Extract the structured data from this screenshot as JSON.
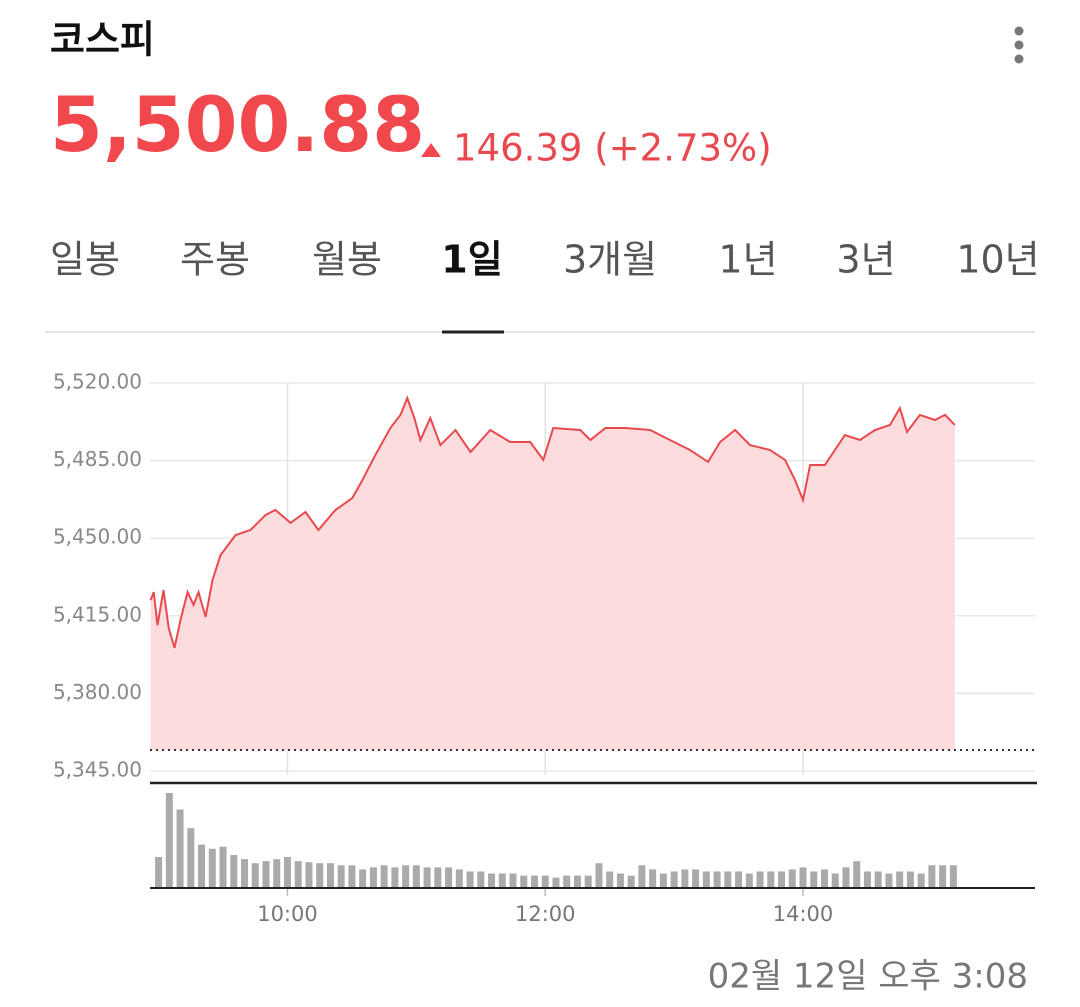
{
  "header": {
    "title": "코스피",
    "price": "5,500.88",
    "change": "146.39 (+2.73%)"
  },
  "tabs": [
    "일봉",
    "주봉",
    "월봉",
    "1일",
    "3개월",
    "1년",
    "3년",
    "10년"
  ],
  "selected_tab": 3,
  "timestamp": "02월 12일 오후 3:08",
  "chart_data": {
    "type": "area",
    "series": [
      {
        "color": "#e8494f",
        "fill": "#fcdcdc",
        "x": [
          536.3,
          537.7,
          539.5,
          542.3,
          544.7,
          547.4,
          550.2,
          553.5,
          556.3,
          558.6,
          561.9,
          565.1,
          568.8,
          575.8,
          582.8,
          589.8,
          594.4,
          601.4,
          608.4,
          614.4,
          622.3,
          630.2,
          634.9,
          640.9,
          647.9,
          652.6,
          655.8,
          659.1,
          661.9,
          666.5,
          671.2,
          678.2,
          685.2,
          694.4,
          703.7,
          713.0,
          719.1,
          723.7,
          736.3,
          741.0,
          748.0,
          757.3,
          768.8,
          778.1,
          787.4,
          795.8,
          801.4,
          808.4,
          815.3,
          824.7,
          831.6,
          836.3,
          840.0,
          843.3,
          850.2,
          859.5,
          866.5,
          873.5,
          880.5,
          885.1,
          888.4,
          894.4,
          901.4,
          906.1,
          910.7
        ],
        "values": [
          5422.1,
          5425.7,
          5410.8,
          5426.6,
          5409.5,
          5400.5,
          5413.1,
          5425.7,
          5419.9,
          5425.7,
          5414.5,
          5431.1,
          5442.4,
          5451.4,
          5453.7,
          5460.5,
          5462.7,
          5456.9,
          5461.8,
          5453.7,
          5462.7,
          5468.1,
          5476.2,
          5487.5,
          5499.7,
          5505.6,
          5513.2,
          5504.2,
          5494.3,
          5504.2,
          5492.0,
          5498.8,
          5488.9,
          5498.8,
          5493.4,
          5493.4,
          5485.3,
          5499.7,
          5498.8,
          5494.3,
          5499.7,
          5499.7,
          5498.8,
          5494.3,
          5489.8,
          5484.4,
          5493.4,
          5498.8,
          5492.0,
          5489.8,
          5485.3,
          5476.2,
          5467.2,
          5483.0,
          5483.0,
          5496.5,
          5494.3,
          5498.8,
          5501.1,
          5508.7,
          5497.9,
          5505.6,
          5503.3,
          5505.6,
          5501.1
        ]
      }
    ],
    "reference_line": 5354.49,
    "xlim": [
      536,
      948
    ],
    "xticks": [
      {
        "value": 600,
        "label": "10:00"
      },
      {
        "value": 720,
        "label": "12:00"
      },
      {
        "value": 840,
        "label": "14:00"
      }
    ],
    "ylim": [
      5345,
      5520
    ],
    "yticks": [
      {
        "value": 5345,
        "label": "5,345.00"
      },
      {
        "value": 5380,
        "label": "5,380.00"
      },
      {
        "value": 5415,
        "label": "5,415.00"
      },
      {
        "value": 5450,
        "label": "5,450.00"
      },
      {
        "value": 5485,
        "label": "5,485.00"
      },
      {
        "value": 5520,
        "label": "5,520.00"
      }
    ],
    "grid": true,
    "volume": {
      "color": "#aaaaaa",
      "x": [
        540,
        545,
        550,
        555,
        560,
        565,
        570,
        575,
        580,
        585,
        590,
        595,
        600,
        605,
        610,
        615,
        620,
        625,
        630,
        635,
        640,
        645,
        650,
        655,
        660,
        665,
        670,
        675,
        680,
        685,
        690,
        695,
        700,
        705,
        710,
        715,
        720,
        725,
        730,
        735,
        740,
        745,
        750,
        755,
        760,
        765,
        770,
        775,
        780,
        785,
        790,
        795,
        800,
        805,
        810,
        815,
        820,
        825,
        830,
        835,
        840,
        845,
        850,
        855,
        860,
        865,
        870,
        875,
        880,
        885,
        890,
        895,
        900,
        905,
        910
      ],
      "values": [
        30,
        92,
        76,
        58,
        42,
        38,
        40,
        32,
        28,
        24,
        26,
        28,
        30,
        26,
        25,
        24,
        24,
        22,
        22,
        18,
        20,
        22,
        20,
        22,
        22,
        20,
        20,
        20,
        18,
        16,
        16,
        14,
        14,
        14,
        12,
        12,
        12,
        10,
        12,
        12,
        12,
        24,
        16,
        14,
        12,
        22,
        18,
        14,
        16,
        18,
        18,
        16,
        16,
        16,
        16,
        14,
        16,
        16,
        16,
        18,
        20,
        16,
        18,
        14,
        20,
        26,
        16,
        16,
        14,
        16,
        16,
        14,
        22,
        22,
        22
      ]
    }
  }
}
